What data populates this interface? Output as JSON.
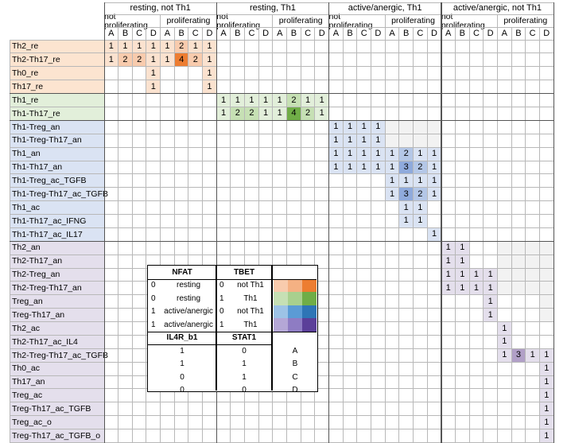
{
  "header": {
    "groups": [
      "resting, not Th1",
      "resting, Th1",
      "active/anergic, Th1",
      "active/anergic, not Th1"
    ],
    "subgroups": [
      "not proliferating",
      "proliferating"
    ],
    "letters": [
      "A",
      "B",
      "C",
      "D"
    ]
  },
  "rows": [
    {
      "label": "Th2_re",
      "bg": "#fce4d0",
      "cells": [
        [
          0,
          "1"
        ],
        [
          1,
          "1"
        ],
        [
          2,
          "1"
        ],
        [
          3,
          "1"
        ],
        [
          4,
          "1"
        ],
        [
          5,
          "2"
        ],
        [
          6,
          "1"
        ],
        [
          7,
          "1"
        ]
      ]
    },
    {
      "label": "Th2-Th17_re",
      "bg": "#fce4d0",
      "cells": [
        [
          0,
          "1"
        ],
        [
          1,
          "2"
        ],
        [
          2,
          "2"
        ],
        [
          3,
          "1"
        ],
        [
          4,
          "1"
        ],
        [
          5,
          "4"
        ],
        [
          6,
          "2"
        ],
        [
          7,
          "1"
        ]
      ]
    },
    {
      "label": "Th0_re",
      "bg": "#fce4d0",
      "cells": [
        [
          3,
          "1"
        ],
        [
          7,
          "1"
        ]
      ]
    },
    {
      "label": "Th17_re",
      "bg": "#fce4d0",
      "cells": [
        [
          3,
          "1"
        ],
        [
          7,
          "1"
        ]
      ]
    },
    {
      "label": "Th1_re",
      "bg": "#e2efda",
      "cells": [
        [
          8,
          "1"
        ],
        [
          9,
          "1"
        ],
        [
          10,
          "1"
        ],
        [
          11,
          "1"
        ],
        [
          12,
          "1"
        ],
        [
          13,
          "2"
        ],
        [
          14,
          "1"
        ],
        [
          15,
          "1"
        ]
      ]
    },
    {
      "label": "Th1-Th17_re",
      "bg": "#e2efda",
      "cells": [
        [
          8,
          "1"
        ],
        [
          9,
          "2"
        ],
        [
          10,
          "2"
        ],
        [
          11,
          "1"
        ],
        [
          12,
          "1"
        ],
        [
          13,
          "4"
        ],
        [
          14,
          "2"
        ],
        [
          15,
          "1"
        ]
      ]
    },
    {
      "label": "Th1-Treg_an",
      "bg": "#dae3f3",
      "cells": [
        [
          16,
          "1"
        ],
        [
          17,
          "1"
        ],
        [
          18,
          "1"
        ],
        [
          19,
          "1"
        ]
      ]
    },
    {
      "label": "Th1-Treg-Th17_an",
      "bg": "#dae3f3",
      "cells": [
        [
          16,
          "1"
        ],
        [
          17,
          "1"
        ],
        [
          18,
          "1"
        ],
        [
          19,
          "1"
        ]
      ]
    },
    {
      "label": "Th1_an",
      "bg": "#dae3f3",
      "cells": [
        [
          16,
          "1"
        ],
        [
          17,
          "1"
        ],
        [
          18,
          "1"
        ],
        [
          19,
          "1"
        ],
        [
          20,
          "1"
        ],
        [
          21,
          "2"
        ],
        [
          22,
          "1"
        ],
        [
          23,
          "1"
        ]
      ]
    },
    {
      "label": "Th1-Th17_an",
      "bg": "#dae3f3",
      "cells": [
        [
          16,
          "1"
        ],
        [
          17,
          "1"
        ],
        [
          18,
          "1"
        ],
        [
          19,
          "1"
        ],
        [
          20,
          "1"
        ],
        [
          21,
          "3"
        ],
        [
          22,
          "2"
        ],
        [
          23,
          "1"
        ]
      ]
    },
    {
      "label": "Th1-Treg_ac_TGFB",
      "bg": "#dae3f3",
      "cells": [
        [
          20,
          "1"
        ],
        [
          21,
          "1"
        ],
        [
          22,
          "1"
        ],
        [
          23,
          "1"
        ]
      ]
    },
    {
      "label": "Th1-Treg-Th17_ac_TGFB",
      "bg": "#dae3f3",
      "cells": [
        [
          20,
          "1"
        ],
        [
          21,
          "3"
        ],
        [
          22,
          "2"
        ],
        [
          23,
          "1"
        ]
      ]
    },
    {
      "label": "Th1_ac",
      "bg": "#dae3f3",
      "cells": [
        [
          21,
          "1"
        ],
        [
          22,
          "1"
        ]
      ]
    },
    {
      "label": "Th1-Th17_ac_IFNG",
      "bg": "#dae3f3",
      "cells": [
        [
          21,
          "1"
        ],
        [
          22,
          "1"
        ]
      ]
    },
    {
      "label": "Th1-Th17_ac_IL17",
      "bg": "#dae3f3",
      "cells": [
        [
          23,
          "1"
        ]
      ]
    },
    {
      "label": "Th2_an",
      "bg": "#e4dfec",
      "cells": [
        [
          24,
          "1"
        ],
        [
          25,
          "1"
        ],
        [
          29,
          "2"
        ],
        [
          30,
          "1"
        ]
      ]
    },
    {
      "label": "Th2-Th17_an",
      "bg": "#e4dfec",
      "cells": [
        [
          24,
          "1"
        ],
        [
          25,
          "1"
        ],
        [
          29,
          "3"
        ],
        [
          30,
          "2"
        ]
      ]
    },
    {
      "label": "Th2-Treg_an",
      "bg": "#e4dfec",
      "cells": [
        [
          24,
          "1"
        ],
        [
          25,
          "1"
        ],
        [
          26,
          "1"
        ],
        [
          27,
          "1"
        ]
      ]
    },
    {
      "label": "Th2-Treg-Th17_an",
      "bg": "#e4dfec",
      "cells": [
        [
          24,
          "1"
        ],
        [
          25,
          "1"
        ],
        [
          26,
          "1"
        ],
        [
          27,
          "1"
        ]
      ]
    },
    {
      "label": "Treg_an",
      "bg": "#e4dfec",
      "cells": [
        [
          27,
          "1"
        ]
      ]
    },
    {
      "label": "Treg-Th17_an",
      "bg": "#e4dfec",
      "cells": [
        [
          27,
          "1"
        ]
      ]
    },
    {
      "label": "Th2_ac",
      "bg": "#e4dfec",
      "cells": [
        [
          28,
          "1"
        ]
      ]
    },
    {
      "label": "Th2-Th17_ac_IL4",
      "bg": "#e4dfec",
      "cells": [
        [
          28,
          "1"
        ]
      ]
    },
    {
      "label": "Th2-Treg-Th17_ac_TGFB",
      "bg": "#e4dfec",
      "cells": [
        [
          28,
          "1"
        ],
        [
          29,
          "3"
        ],
        [
          30,
          "1"
        ],
        [
          31,
          "1"
        ]
      ]
    },
    {
      "label": "Th0_ac",
      "bg": "#e4dfec",
      "cells": [
        [
          31,
          "1"
        ]
      ]
    },
    {
      "label": "Th17_an",
      "bg": "#e4dfec",
      "cells": [
        [
          31,
          "1"
        ]
      ]
    },
    {
      "label": "Treg_ac",
      "bg": "#e4dfec",
      "cells": [
        [
          31,
          "1"
        ]
      ]
    },
    {
      "label": "Treg-Th17_ac_TGFB",
      "bg": "#e4dfec",
      "cells": [
        [
          31,
          "1"
        ]
      ]
    },
    {
      "label": "Treg_ac_o",
      "bg": "#e4dfec",
      "cells": [
        [
          31,
          "1"
        ]
      ]
    },
    {
      "label": "Treg-Th17_ac_TGFB_o",
      "bg": "#e4dfec",
      "cells": [
        [
          31,
          "1"
        ]
      ]
    }
  ],
  "palette": {
    "orange": [
      "#fbe2cf",
      "#f8cbad",
      "#f4b183",
      "#ed7d31"
    ],
    "green": [
      "#e2efda",
      "#c6e0b4",
      "#a9d08e",
      "#70ad47"
    ],
    "blue": [
      "#dae3f3",
      "#b4c7e7",
      "#8faadc",
      "#4472c4"
    ],
    "purple": [
      "#e4dfec",
      "#ccc0da",
      "#b1a0c7",
      "#7030a0"
    ],
    "faint": "#f2f2f2"
  },
  "faint_cells": [
    [
      6,
      [
        20,
        21,
        22,
        23
      ]
    ],
    [
      7,
      [
        20,
        21,
        22,
        23
      ]
    ],
    [
      15,
      [
        28,
        29,
        30,
        31
      ]
    ],
    [
      16,
      [
        28,
        29,
        30,
        31
      ]
    ],
    [
      17,
      [
        28,
        29,
        30,
        31
      ]
    ],
    [
      18,
      [
        28,
        29,
        30,
        31
      ]
    ],
    [
      19,
      [
        31
      ]
    ],
    [
      20,
      [
        31
      ]
    ]
  ],
  "legend": {
    "nfat_header": "NFAT",
    "tbet_header": "TBET",
    "rows": [
      {
        "nfat": "0",
        "nfat_label": "resting",
        "tbet": "0",
        "tbet_label": "not Th1"
      },
      {
        "nfat": "0",
        "nfat_label": "resting",
        "tbet": "1",
        "tbet_label": "Th1"
      },
      {
        "nfat": "1",
        "nfat_label": "active/anergic",
        "tbet": "0",
        "tbet_label": "not Th1"
      },
      {
        "nfat": "1",
        "nfat_label": "active/anergic",
        "tbet": "1",
        "tbet_label": "Th1"
      }
    ],
    "il4r_header": "IL4R_b1",
    "stat1_header": "STAT1",
    "code_rows": [
      {
        "il4r": "1",
        "stat1": "0",
        "letter": "A"
      },
      {
        "il4r": "1",
        "stat1": "1",
        "letter": "B"
      },
      {
        "il4r": "0",
        "stat1": "1",
        "letter": "C"
      },
      {
        "il4r": "0",
        "stat1": "0",
        "letter": "D"
      }
    ],
    "swatches": [
      [
        "#f8cbad",
        "#f4b183",
        "#ed7d31"
      ],
      [
        "#c6e0b4",
        "#a9d08e",
        "#70ad47"
      ],
      [
        "#9dc3e6",
        "#5b9bd5",
        "#2e75b6"
      ],
      [
        "#b4a7d6",
        "#8e7cc3",
        "#5b3f99"
      ]
    ]
  }
}
